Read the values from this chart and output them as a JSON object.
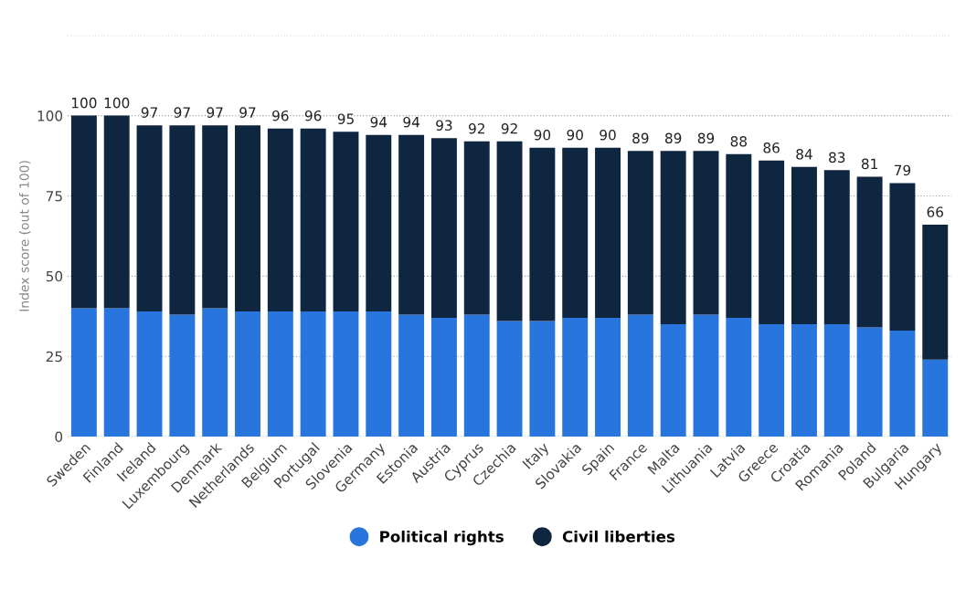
{
  "chart_data": {
    "type": "bar",
    "stacked": true,
    "ylabel": "Index score (out of 100)",
    "categories": [
      "Sweden",
      "Finland",
      "Ireland",
      "Luxembourg",
      "Denmark",
      "Netherlands",
      "Belgium",
      "Portugal",
      "Slovenia",
      "Germany",
      "Estonia",
      "Austria",
      "Cyprus",
      "Czechia",
      "Italy",
      "Slovakia",
      "Spain",
      "France",
      "Malta",
      "Lithuania",
      "Latvia",
      "Greece",
      "Croatia",
      "Romania",
      "Poland",
      "Bulgaria",
      "Hungary"
    ],
    "series": [
      {
        "name": "Political rights",
        "color": "#2876dd",
        "values": [
          40,
          40,
          39,
          38,
          40,
          39,
          39,
          39,
          39,
          39,
          38,
          37,
          38,
          36,
          36,
          37,
          37,
          38,
          35,
          38,
          37,
          35,
          35,
          35,
          34,
          33,
          24
        ]
      },
      {
        "name": "Civil liberties",
        "color": "#0f2640",
        "values": [
          60,
          60,
          58,
          59,
          57,
          58,
          57,
          57,
          56,
          55,
          56,
          56,
          54,
          56,
          54,
          53,
          53,
          51,
          54,
          51,
          51,
          51,
          49,
          48,
          47,
          46,
          42
        ]
      }
    ],
    "totals": [
      "100",
      "100",
      "97",
      "97",
      "97",
      "97",
      "96",
      "96",
      "95",
      "94",
      "94",
      "93",
      "92",
      "92",
      "90",
      "90",
      "90",
      "89",
      "89",
      "89",
      "88",
      "86",
      "84",
      "83",
      "81",
      "79",
      "66"
    ],
    "ylim": [
      0,
      125
    ],
    "yticks": [
      0,
      25,
      50,
      75,
      100,
      {
        "value": 125,
        "label": null
      }
    ],
    "grid": "y",
    "legend": "bottom"
  }
}
